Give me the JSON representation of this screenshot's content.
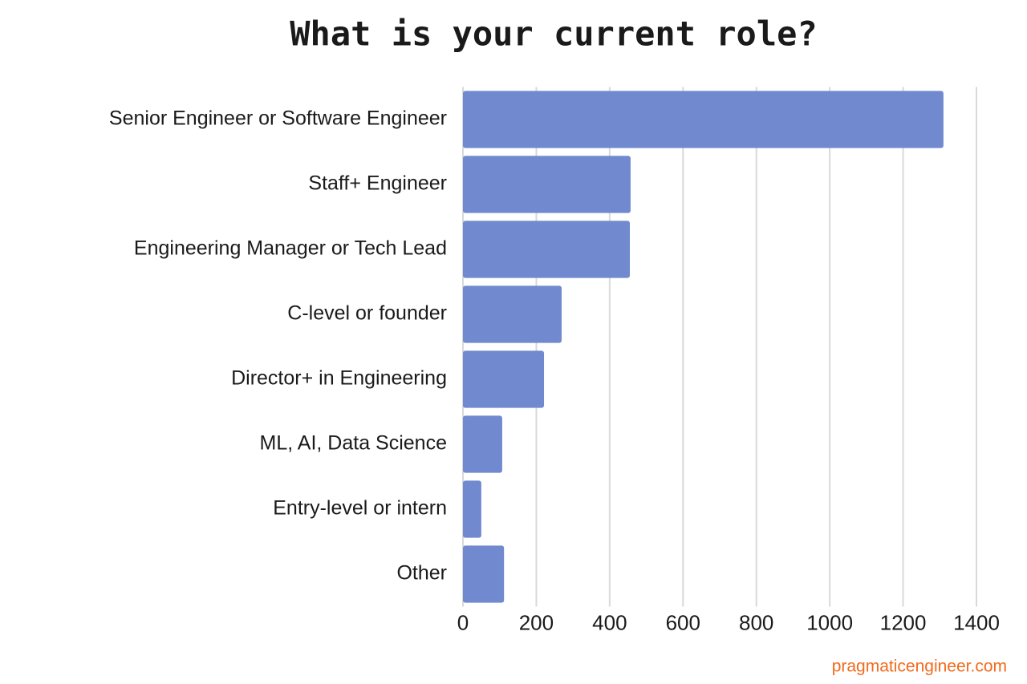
{
  "chart_data": {
    "type": "bar",
    "orientation": "horizontal",
    "title": "What is your current role?",
    "categories": [
      "Senior Engineer or Software Engineer",
      "Staff+ Engineer",
      "Engineering Manager or Tech Lead",
      "C-level or founder",
      "Director+ in Engineering",
      "ML, AI, Data Science",
      "Entry-level or intern",
      "Other"
    ],
    "values": [
      1310,
      457,
      455,
      269,
      221,
      107,
      50,
      112
    ],
    "color": "#7089cf",
    "xlim": [
      0,
      1400
    ],
    "xticks": [
      0,
      200,
      400,
      600,
      800,
      1000,
      1200,
      1400
    ],
    "grid": true,
    "source": "pragmaticengineer.com"
  }
}
